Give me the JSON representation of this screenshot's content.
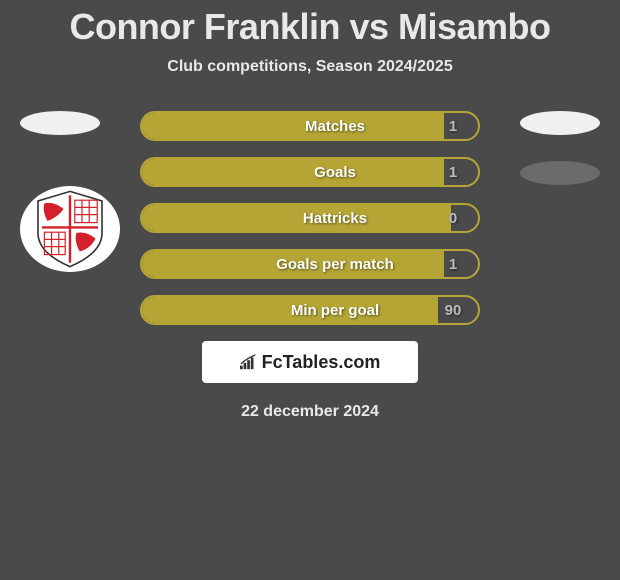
{
  "title": "Connor Franklin vs Misambo",
  "subtitle": "Club competitions, Season 2024/2025",
  "stats": [
    {
      "label": "Matches",
      "value": "1",
      "fill_pct": 90
    },
    {
      "label": "Goals",
      "value": "1",
      "fill_pct": 90
    },
    {
      "label": "Hattricks",
      "value": "0",
      "fill_pct": 92
    },
    {
      "label": "Goals per match",
      "value": "1",
      "fill_pct": 90
    },
    {
      "label": "Min per goal",
      "value": "90",
      "fill_pct": 88
    }
  ],
  "brand": "FcTables.com",
  "date": "22 december 2024",
  "colors": {
    "bar_border": "#b5a535",
    "bar_fill": "#b5a535",
    "background": "#4a4a4a",
    "text": "#e8e8e8",
    "shield_red": "#d4202a",
    "shield_white": "#ffffff"
  }
}
